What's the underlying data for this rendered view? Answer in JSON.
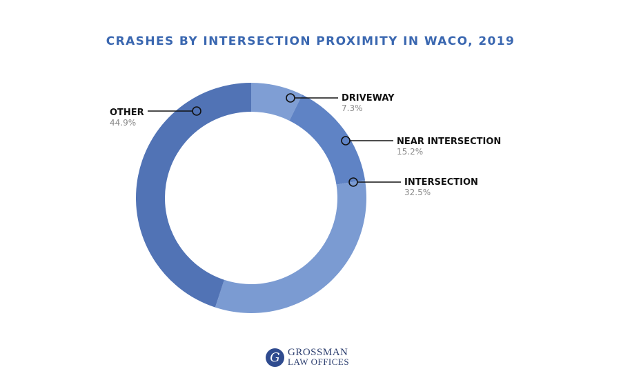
{
  "chart_data": {
    "type": "pie",
    "variant": "donut",
    "title": "CRASHES BY INTERSECTION PROXIMITY IN WACO, 2019",
    "categories": [
      "DRIVEWAY",
      "NEAR INTERSECTION",
      "INTERSECTION",
      "OTHER"
    ],
    "values": [
      7.3,
      15.2,
      32.5,
      44.9
    ],
    "value_labels": [
      "7.3%",
      "15.2%",
      "32.5%",
      "44.9%"
    ],
    "colors": [
      "#7f9ed4",
      "#5f83c5",
      "#7b9bd2",
      "#5173b5"
    ],
    "unit": "%"
  },
  "branding": {
    "logo_letter": "G",
    "line1": "GROSSMAN",
    "line2": "LAW OFFICES"
  }
}
